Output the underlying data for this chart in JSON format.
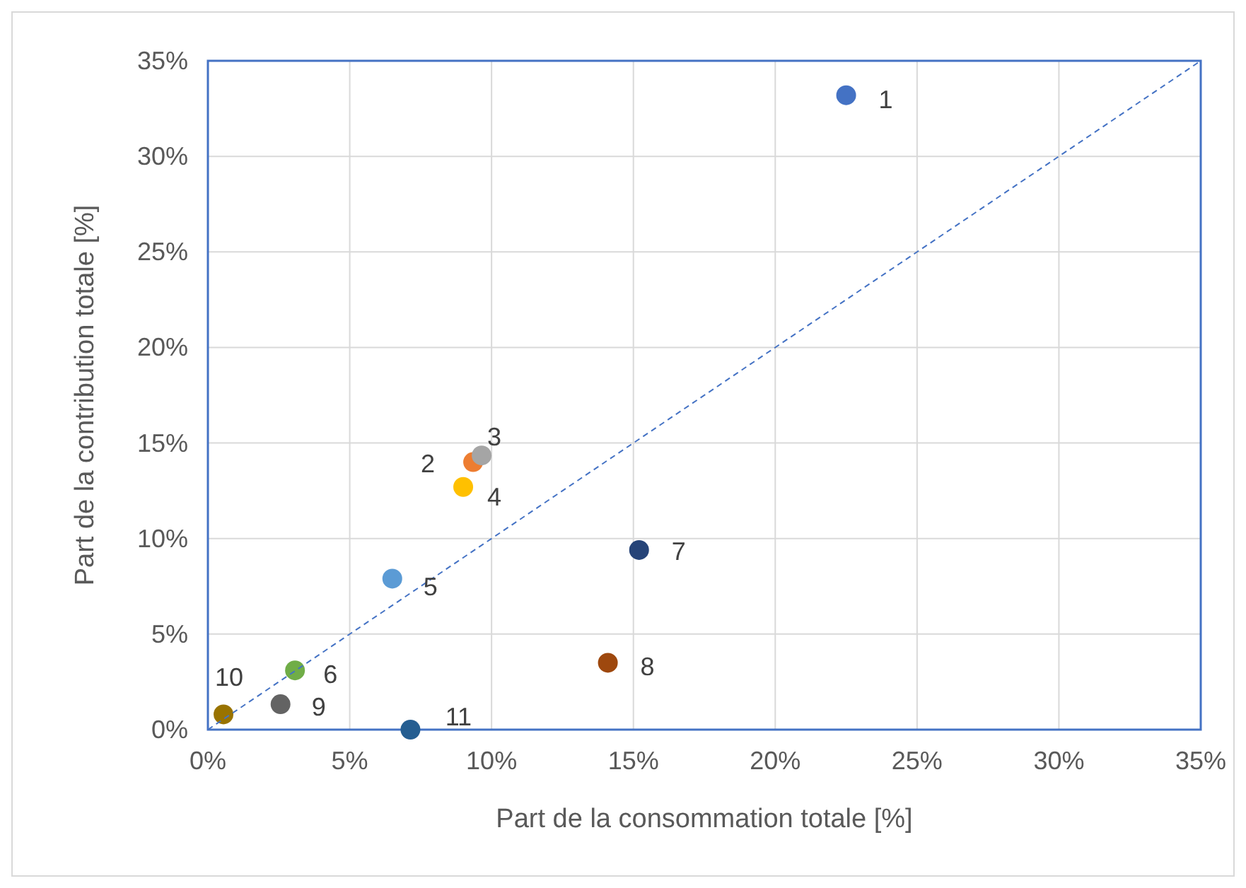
{
  "chart_data": {
    "type": "scatter",
    "xlabel": "Part de la consommation totale [%]",
    "ylabel": "Part de la contribution totale [%]",
    "xlim": [
      0,
      35
    ],
    "ylim": [
      0,
      35
    ],
    "xticks": [
      {
        "value": 0,
        "label": "0%"
      },
      {
        "value": 5,
        "label": "5%"
      },
      {
        "value": 10,
        "label": "10%"
      },
      {
        "value": 15,
        "label": "15%"
      },
      {
        "value": 20,
        "label": "20%"
      },
      {
        "value": 25,
        "label": "25%"
      },
      {
        "value": 30,
        "label": "30%"
      },
      {
        "value": 35,
        "label": "35%"
      }
    ],
    "yticks": [
      {
        "value": 0,
        "label": "0%"
      },
      {
        "value": 5,
        "label": "5%"
      },
      {
        "value": 10,
        "label": "10%"
      },
      {
        "value": 15,
        "label": "15%"
      },
      {
        "value": 20,
        "label": "20%"
      },
      {
        "value": 25,
        "label": "25%"
      },
      {
        "value": 30,
        "label": "30%"
      },
      {
        "value": 35,
        "label": "35%"
      }
    ],
    "grid": true,
    "series": [
      {
        "marker": "circle",
        "x": [
          22.5,
          9.35,
          9.65,
          9.0,
          6.5,
          3.07,
          15.2,
          14.1,
          2.56,
          0.55,
          7.14
        ],
        "values": [
          33.2,
          14.0,
          14.35,
          12.7,
          7.9,
          3.1,
          9.4,
          3.5,
          1.33,
          0.8,
          0.0
        ],
        "colors": [
          "#4472c4",
          "#ed7d31",
          "#a5a5a5",
          "#ffc000",
          "#5b9bd5",
          "#70ad47",
          "#264478",
          "#9e480e",
          "#636363",
          "#997300",
          "#255e91"
        ]
      },
      {
        "type": "line",
        "x": [
          0,
          35
        ],
        "values": [
          0,
          35
        ],
        "color": "#4472c4",
        "line_style": "dashed",
        "marker": "none"
      }
    ],
    "annotations": [
      {
        "text": "1",
        "x": 22.5,
        "y": 33.2
      },
      {
        "text": "2",
        "x": 9.35,
        "y": 14.0
      },
      {
        "text": "3",
        "x": 9.65,
        "y": 14.35
      },
      {
        "text": "4",
        "x": 9.0,
        "y": 12.7
      },
      {
        "text": "5",
        "x": 6.5,
        "y": 7.9
      },
      {
        "text": "6",
        "x": 3.07,
        "y": 3.1
      },
      {
        "text": "7",
        "x": 15.2,
        "y": 9.4
      },
      {
        "text": "8",
        "x": 14.1,
        "y": 3.5
      },
      {
        "text": "9",
        "x": 2.56,
        "y": 1.33
      },
      {
        "text": "10",
        "x": 0.55,
        "y": 0.8
      },
      {
        "text": "11",
        "x": 7.14,
        "y": 0.0
      }
    ]
  }
}
